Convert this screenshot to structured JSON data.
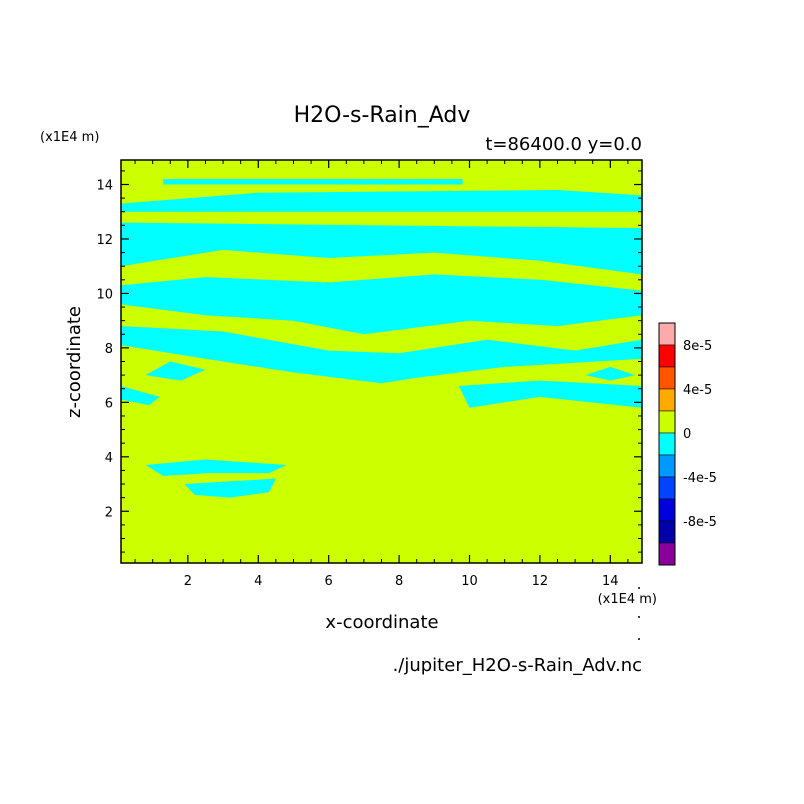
{
  "chart_data": {
    "type": "heatmap",
    "title": "H2O-s-Rain_Adv",
    "subtitle": "t=86400.0 y=0.0",
    "xlabel": "x-coordinate",
    "ylabel": "z-coordinate",
    "x_unit": "(x1E4 m)",
    "y_unit": "(x1E4 m)",
    "xlim": [
      0.1,
      14.9
    ],
    "ylim": [
      0.1,
      14.9
    ],
    "x_ticks": [
      "2",
      "4",
      "6",
      "8",
      "10",
      "12",
      "14"
    ],
    "y_ticks": [
      "2",
      "4",
      "6",
      "8",
      "10",
      "12",
      "14"
    ],
    "source_file": "./jupiter_H2O-s-Rain_Adv.nc",
    "background_level": {
      "range": [
        0,
        2e-05
      ],
      "color": "#ccff00"
    },
    "colorbar": {
      "labels": [
        "8e-5",
        "4e-5",
        "0",
        "-4e-5",
        "-8e-5"
      ],
      "levels": [
        {
          "min": 8e-05,
          "max": 0.0001,
          "color": "#ffaaaa"
        },
        {
          "min": 6e-05,
          "max": 8e-05,
          "color": "#ff0000"
        },
        {
          "min": 4e-05,
          "max": 6e-05,
          "color": "#ff5500"
        },
        {
          "min": 2e-05,
          "max": 4e-05,
          "color": "#ffaa00"
        },
        {
          "min": 0,
          "max": 2e-05,
          "color": "#ccff00"
        },
        {
          "min": -2e-05,
          "max": 0,
          "color": "#00ffff"
        },
        {
          "min": -4e-05,
          "max": -2e-05,
          "color": "#0099ff"
        },
        {
          "min": -6e-05,
          "max": -4e-05,
          "color": "#0044ff"
        },
        {
          "min": -8e-05,
          "max": -6e-05,
          "color": "#0000dd"
        },
        {
          "min": -0.0001,
          "max": -8e-05,
          "color": "#0000aa"
        },
        {
          "min": -0.00012,
          "max": -0.0001,
          "color": "#880099"
        }
      ]
    },
    "negative_regions": [
      {
        "points": [
          [
            1.3,
            14.2
          ],
          [
            9.8,
            14.2
          ],
          [
            9.8,
            14.0
          ],
          [
            1.3,
            14.0
          ]
        ]
      },
      {
        "points": [
          [
            0.1,
            13.0
          ],
          [
            14.9,
            13.0
          ],
          [
            14.9,
            13.6
          ],
          [
            12.5,
            13.8
          ],
          [
            4.0,
            13.7
          ],
          [
            0.1,
            13.3
          ]
        ]
      },
      {
        "points": [
          [
            0.1,
            12.6
          ],
          [
            14.9,
            12.4
          ],
          [
            14.9,
            10.7
          ],
          [
            12.0,
            11.2
          ],
          [
            9.0,
            11.5
          ],
          [
            6.0,
            11.3
          ],
          [
            3.0,
            11.6
          ],
          [
            0.1,
            11.0
          ]
        ]
      },
      {
        "points": [
          [
            0.1,
            10.3
          ],
          [
            2.5,
            10.6
          ],
          [
            6.0,
            10.4
          ],
          [
            9.0,
            10.7
          ],
          [
            12.0,
            10.5
          ],
          [
            14.9,
            10.1
          ],
          [
            14.9,
            9.2
          ],
          [
            12.5,
            8.8
          ],
          [
            10.0,
            9.0
          ],
          [
            7.0,
            8.5
          ],
          [
            5.0,
            9.0
          ],
          [
            2.5,
            9.2
          ],
          [
            0.1,
            9.6
          ]
        ]
      },
      {
        "points": [
          [
            0.1,
            8.8
          ],
          [
            3.0,
            8.6
          ],
          [
            6.0,
            7.9
          ],
          [
            8.0,
            7.8
          ],
          [
            10.5,
            8.3
          ],
          [
            13.0,
            7.9
          ],
          [
            14.9,
            8.3
          ],
          [
            14.9,
            7.6
          ],
          [
            11.0,
            7.3
          ],
          [
            8.5,
            6.9
          ],
          [
            7.5,
            6.7
          ],
          [
            5.0,
            7.1
          ],
          [
            2.5,
            7.6
          ],
          [
            0.1,
            8.1
          ]
        ]
      },
      {
        "points": [
          [
            0.8,
            7.0
          ],
          [
            1.8,
            6.8
          ],
          [
            2.5,
            7.2
          ],
          [
            1.5,
            7.5
          ]
        ]
      },
      {
        "points": [
          [
            0.1,
            6.6
          ],
          [
            1.2,
            6.2
          ],
          [
            0.9,
            5.9
          ],
          [
            0.1,
            6.1
          ]
        ]
      },
      {
        "points": [
          [
            9.7,
            6.6
          ],
          [
            12.0,
            6.8
          ],
          [
            14.9,
            6.6
          ],
          [
            14.9,
            5.8
          ],
          [
            12.0,
            6.2
          ],
          [
            10.0,
            5.8
          ]
        ]
      },
      {
        "points": [
          [
            13.3,
            7.0
          ],
          [
            14.0,
            7.3
          ],
          [
            14.7,
            7.0
          ],
          [
            14.0,
            6.8
          ]
        ]
      },
      {
        "points": [
          [
            0.8,
            3.7
          ],
          [
            2.5,
            3.9
          ],
          [
            4.8,
            3.7
          ],
          [
            4.3,
            3.4
          ],
          [
            2.6,
            3.4
          ],
          [
            1.3,
            3.3
          ]
        ]
      },
      {
        "points": [
          [
            1.9,
            3.0
          ],
          [
            3.2,
            3.1
          ],
          [
            4.5,
            3.2
          ],
          [
            4.3,
            2.7
          ],
          [
            3.2,
            2.5
          ],
          [
            2.2,
            2.6
          ]
        ]
      }
    ]
  }
}
